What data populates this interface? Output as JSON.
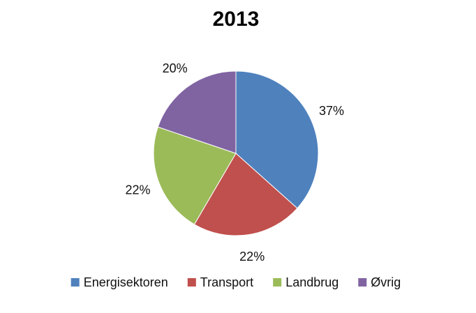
{
  "chart_data": {
    "type": "pie",
    "title": "2013",
    "categories": [
      "Energisektoren",
      "Transport",
      "Landbrug",
      "Øvrig"
    ],
    "values": [
      37,
      22,
      22,
      20
    ],
    "labels": [
      "37%",
      "22%",
      "22%",
      "20%"
    ],
    "colors": [
      "#4F81BD",
      "#C0504D",
      "#9BBB59",
      "#8064A2"
    ],
    "start_angle_deg": 0,
    "direction": "clockwise",
    "legend_position": "bottom"
  }
}
